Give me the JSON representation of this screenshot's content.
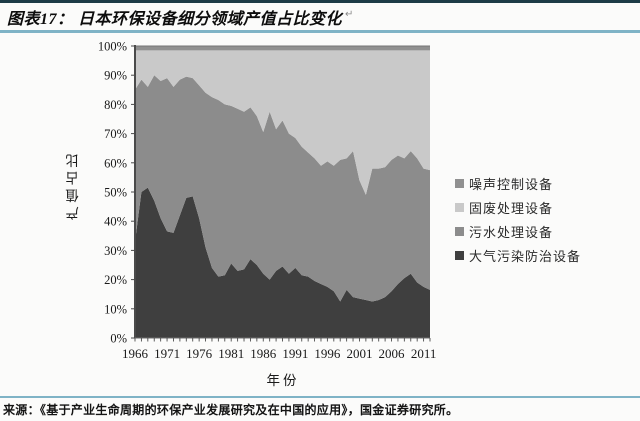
{
  "header": {
    "title": "图表17：  日本环保设备细分领域产值占比变化",
    "paragraph_mark": "↵"
  },
  "source": {
    "text": "来源：《基于产业生命周期的环保产业发展研究及在中国的应用》，国金证券研究所。"
  },
  "colors": {
    "rule_dark": "#1d3b46",
    "rule_teal": "#7fb3c6",
    "axis_line": "#4a4a4a",
    "bottom_axis_line": "#6e6e6e",
    "tick_text": "#1a1a1a",
    "plot_top_edge": "#757575"
  },
  "chart_data": {
    "type": "area",
    "stacked": true,
    "units": "percent",
    "xlabel": "年份",
    "ylabel": "产值占比",
    "ylim": [
      0,
      100
    ],
    "grid": false,
    "legend_position": "right",
    "ytick_values": [
      0,
      10,
      20,
      30,
      40,
      50,
      60,
      70,
      80,
      90,
      100
    ],
    "ytick_suffix": "%",
    "xtick_values": [
      1966,
      1971,
      1976,
      1981,
      1986,
      1991,
      1996,
      2001,
      2006,
      2011
    ],
    "x": [
      1966,
      1967,
      1968,
      1969,
      1970,
      1971,
      1972,
      1973,
      1974,
      1975,
      1976,
      1977,
      1978,
      1979,
      1980,
      1981,
      1982,
      1983,
      1984,
      1985,
      1986,
      1987,
      1988,
      1989,
      1990,
      1991,
      1992,
      1993,
      1994,
      1995,
      1996,
      1997,
      1998,
      1999,
      2000,
      2001,
      2002,
      2003,
      2004,
      2005,
      2006,
      2007,
      2008,
      2009,
      2010,
      2011,
      2012
    ],
    "series": [
      {
        "id": "air",
        "name": "大气污染防治设备",
        "color": "#3f3f3f",
        "values": [
          33,
          50,
          51.5,
          47,
          41,
          36.5,
          36,
          42,
          48,
          48.5,
          41,
          31,
          24,
          21,
          21.5,
          25.5,
          23,
          23.5,
          27,
          25,
          22,
          20,
          23,
          24.5,
          22,
          24,
          21.5,
          21,
          19.5,
          18.5,
          17.5,
          16,
          12.5,
          16.5,
          14,
          13.5,
          13,
          12.5,
          13,
          14,
          16,
          18.5,
          20.5,
          22,
          19,
          17.5,
          16.5
        ]
      },
      {
        "id": "sewage",
        "name": "污水处理设备",
        "color": "#8c8c8c",
        "values": [
          52,
          38.5,
          34.5,
          43,
          47,
          52.5,
          50,
          46.5,
          41.5,
          40.5,
          45.5,
          53,
          58.5,
          60.5,
          58.5,
          54,
          55.5,
          54,
          52,
          51,
          48.5,
          57.5,
          48.5,
          50,
          48,
          44.5,
          44,
          42.5,
          42,
          40.5,
          43,
          43,
          48.5,
          45,
          50,
          40.5,
          36,
          45.5,
          45,
          44.5,
          45,
          44,
          41,
          42,
          42.5,
          40.5,
          41
        ]
      },
      {
        "id": "solid",
        "name": "固废处理设备",
        "color": "#c9c9c9",
        "values": [
          13.5,
          10,
          12.5,
          8.5,
          10.5,
          9.5,
          12.5,
          10,
          9,
          9.5,
          12,
          14.5,
          16,
          17,
          18.5,
          19,
          20,
          21,
          19.5,
          22.5,
          28,
          21,
          27,
          24,
          28.5,
          30,
          33,
          35,
          37,
          39.5,
          38,
          39.5,
          37.5,
          37,
          34.5,
          44.5,
          49.5,
          40.5,
          40.5,
          40,
          37.5,
          36,
          37,
          34.5,
          37,
          40.5,
          41
        ]
      },
      {
        "id": "noise",
        "name": "噪声控制设备",
        "color": "#909090",
        "values": [
          1.5,
          1.5,
          1.5,
          1.5,
          1.5,
          1.5,
          1.5,
          1.5,
          1.5,
          1.5,
          1.5,
          1.5,
          1.5,
          1.5,
          1.5,
          1.5,
          1.5,
          1.5,
          1.5,
          1.5,
          1.5,
          1.5,
          1.5,
          1.5,
          1.5,
          1.5,
          1.5,
          1.5,
          1.5,
          1.5,
          1.5,
          1.5,
          1.5,
          1.5,
          1.5,
          1.5,
          1.5,
          1.5,
          1.5,
          1.5,
          1.5,
          1.5,
          1.5,
          1.5,
          1.5,
          1.5,
          1.5
        ]
      }
    ]
  }
}
